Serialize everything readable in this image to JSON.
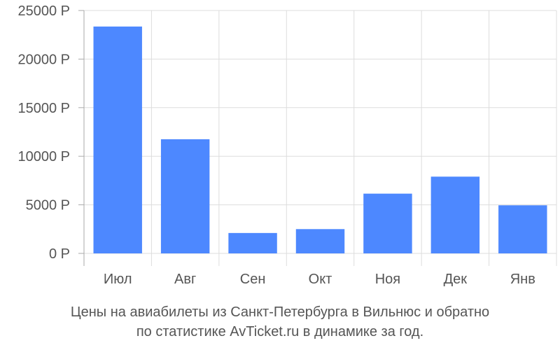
{
  "chart_data": {
    "type": "bar",
    "title": "",
    "xlabel": "",
    "ylabel": "",
    "categories": [
      "Июл",
      "Авг",
      "Сен",
      "Окт",
      "Ноя",
      "Дек",
      "Янв"
    ],
    "values": [
      23350,
      11750,
      2100,
      2500,
      6150,
      7900,
      4950
    ],
    "ylim": [
      0,
      25000
    ],
    "yticks": [
      {
        "value": 0,
        "label": "0 Р"
      },
      {
        "value": 5000,
        "label": "5000 Р"
      },
      {
        "value": 10000,
        "label": "10000 Р"
      },
      {
        "value": 15000,
        "label": "15000 Р"
      },
      {
        "value": 20000,
        "label": "20000 Р"
      },
      {
        "value": 25000,
        "label": "25000 Р"
      }
    ],
    "grid": true,
    "bar_color": "#4d88ff"
  },
  "caption": {
    "line1": "Цены на авиабилеты из Санкт-Петербурга в Вильнюс и обратно",
    "line2": "по статистике AvTicket.ru в динамике за год."
  }
}
